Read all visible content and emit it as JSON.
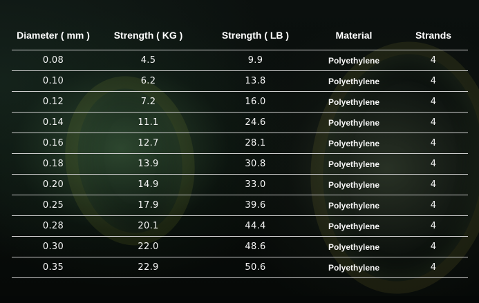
{
  "table": {
    "headers": [
      "Diameter ( mm )",
      "Strength ( KG )",
      "Strength ( LB )",
      "Material",
      "Strands"
    ],
    "rows": [
      [
        "0.08",
        "4.5",
        "9.9",
        "Polyethylene",
        "4"
      ],
      [
        "0.10",
        "6.2",
        "13.8",
        "Polyethylene",
        "4"
      ],
      [
        "0.12",
        "7.2",
        "16.0",
        "Polyethylene",
        "4"
      ],
      [
        "0.14",
        "11.1",
        "24.6",
        "Polyethylene",
        "4"
      ],
      [
        "0.16",
        "12.7",
        "28.1",
        "Polyethylene",
        "4"
      ],
      [
        "0.18",
        "13.9",
        "30.8",
        "Polyethylene",
        "4"
      ],
      [
        "0.20",
        "14.9",
        "33.0",
        "Polyethylene",
        "4"
      ],
      [
        "0.25",
        "17.9",
        "39.6",
        "Polyethylene",
        "4"
      ],
      [
        "0.28",
        "20.1",
        "44.4",
        "Polyethylene",
        "4"
      ],
      [
        "0.30",
        "22.0",
        "48.6",
        "Polyethylene",
        "4"
      ],
      [
        "0.35",
        "22.9",
        "50.6",
        "Polyethylene",
        "4"
      ]
    ]
  }
}
